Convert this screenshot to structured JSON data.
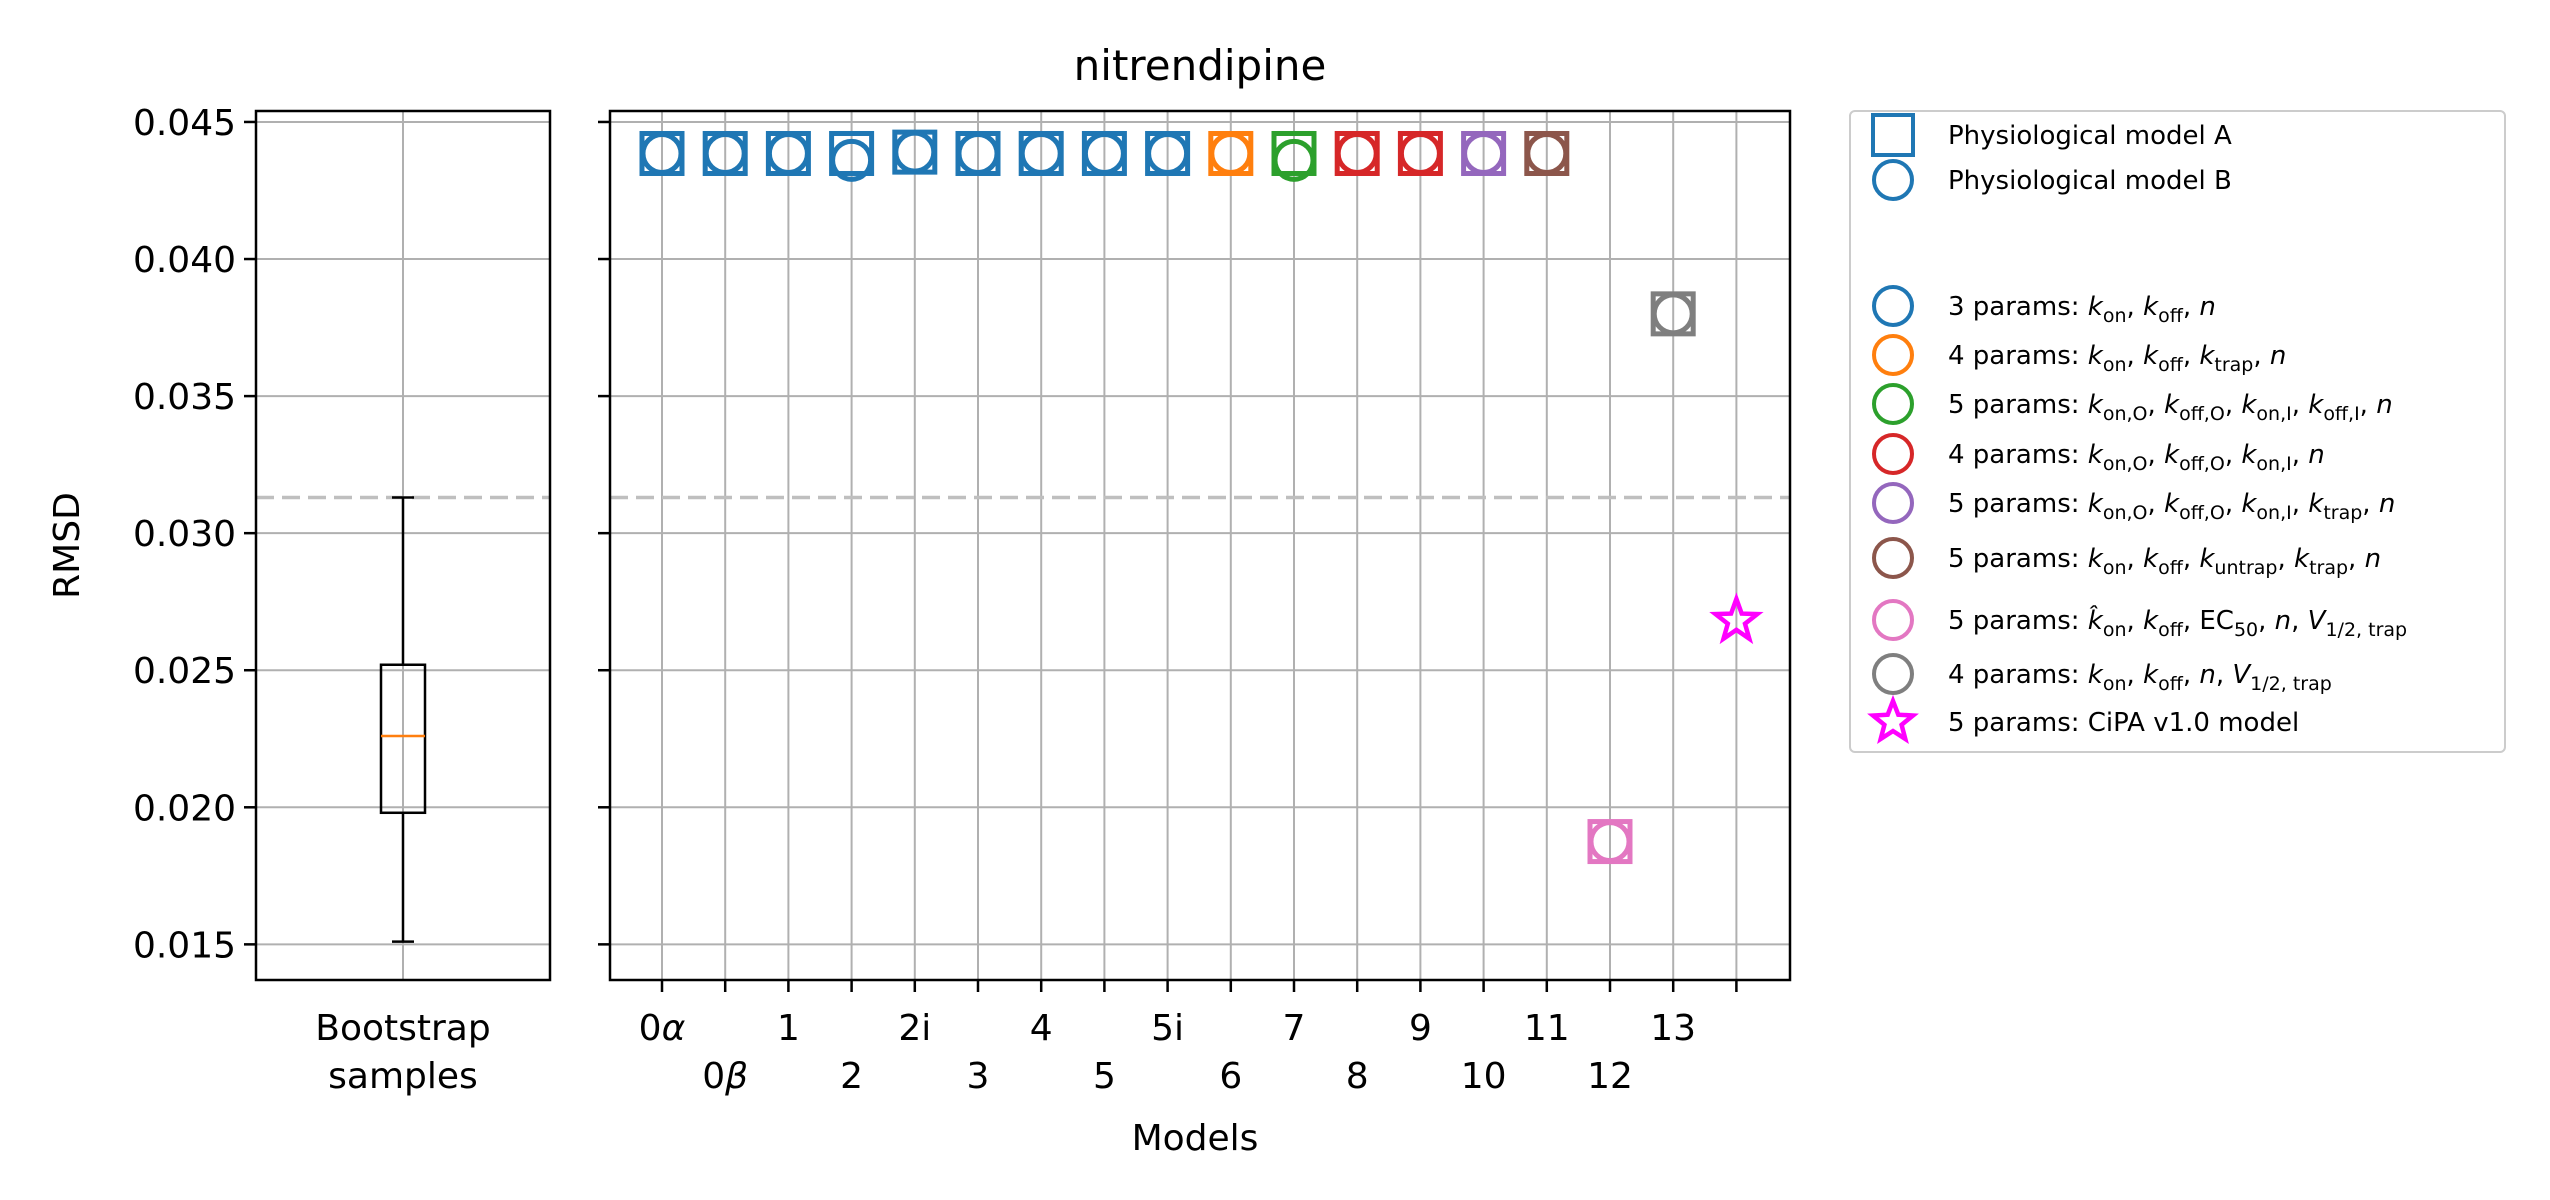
{
  "chart_data": [
    {
      "type": "box",
      "panel": "bootstrap",
      "ylabel": "RMSD",
      "xlabel_lines": [
        "Bootstrap",
        "samples"
      ],
      "ylim": [
        0.0137,
        0.0454
      ],
      "yticks": [
        "0.015",
        "0.020",
        "0.025",
        "0.030",
        "0.035",
        "0.040",
        "0.045"
      ],
      "ytick_values": [
        0.015,
        0.02,
        0.025,
        0.03,
        0.035,
        0.04,
        0.045
      ],
      "grid": true,
      "box": {
        "whisker_low": 0.0151,
        "q1": 0.0198,
        "median": 0.0226,
        "q3": 0.0252,
        "whisker_high": 0.0313
      },
      "reference_line": 0.0313,
      "colors": {
        "box": "#000000",
        "median": "#ff7f0e",
        "reference": "#bfbfbf",
        "grid": "#b0b0b0"
      }
    },
    {
      "type": "scatter",
      "panel": "models",
      "title": "nitrendipine",
      "xlabel": "Models",
      "ylim": [
        0.0137,
        0.0454
      ],
      "grid": true,
      "reference_line": 0.0313,
      "xticks_top": [
        "0α",
        "1",
        "2i",
        "4",
        "5i",
        "7",
        "9",
        "11",
        "13"
      ],
      "xticks_bottom": [
        "0β",
        "2",
        "3",
        "5",
        "6",
        "8",
        "10",
        "12"
      ],
      "x_categories": [
        "0α",
        "0β",
        "1",
        "2",
        "2i",
        "3",
        "4",
        "5",
        "5i",
        "6",
        "7",
        "8",
        "9",
        "10",
        "11",
        "12",
        "13",
        "14"
      ],
      "points": [
        {
          "model": "0α",
          "A": 0.04385,
          "B": 0.04385,
          "color": "#1f77b4"
        },
        {
          "model": "0β",
          "A": 0.04385,
          "B": 0.04385,
          "color": "#1f77b4"
        },
        {
          "model": "1",
          "A": 0.04385,
          "B": 0.04385,
          "color": "#1f77b4"
        },
        {
          "model": "2",
          "A": 0.04385,
          "B": 0.0436,
          "color": "#1f77b4"
        },
        {
          "model": "2i",
          "A": 0.0439,
          "B": 0.0439,
          "color": "#1f77b4"
        },
        {
          "model": "3",
          "A": 0.04385,
          "B": 0.04385,
          "color": "#1f77b4"
        },
        {
          "model": "4",
          "A": 0.04385,
          "B": 0.04385,
          "color": "#1f77b4"
        },
        {
          "model": "5",
          "A": 0.04385,
          "B": 0.04385,
          "color": "#1f77b4"
        },
        {
          "model": "5i",
          "A": 0.04385,
          "B": 0.04385,
          "color": "#1f77b4"
        },
        {
          "model": "6",
          "A": 0.04385,
          "B": 0.04385,
          "color": "#ff7f0e"
        },
        {
          "model": "7",
          "A": 0.04385,
          "B": 0.0436,
          "color": "#2ca02c"
        },
        {
          "model": "8",
          "A": 0.04385,
          "B": 0.04385,
          "color": "#d62728"
        },
        {
          "model": "9",
          "A": 0.04385,
          "B": 0.04385,
          "color": "#d62728"
        },
        {
          "model": "10",
          "A": 0.04385,
          "B": 0.04385,
          "color": "#9467bd"
        },
        {
          "model": "11",
          "A": 0.04385,
          "B": 0.04385,
          "color": "#8c564b"
        },
        {
          "model": "12",
          "A": 0.01875,
          "B": 0.01875,
          "color": "#e377c2"
        },
        {
          "model": "13",
          "A": 0.038,
          "B": 0.038,
          "color": "#7f7f7f"
        }
      ],
      "cipa_point": {
        "model": "14",
        "value": 0.0268,
        "color": "#ff00ff"
      },
      "legend": {
        "placement": "outside-right",
        "entries": [
          {
            "marker": "square",
            "color": "#1f77b4",
            "label": "Physiological model A"
          },
          {
            "marker": "circle",
            "color": "#1f77b4",
            "label": "Physiological model B"
          },
          {
            "marker": "none",
            "label": ""
          },
          {
            "marker": "circle",
            "color": "#1f77b4",
            "prefix": "3 params: ",
            "terms": [
              [
                "k",
                "on"
              ],
              [
                "k",
                "off"
              ],
              [
                "n",
                ""
              ]
            ]
          },
          {
            "marker": "circle",
            "color": "#ff7f0e",
            "prefix": "4 params: ",
            "terms": [
              [
                "k",
                "on"
              ],
              [
                "k",
                "off"
              ],
              [
                "k",
                "trap"
              ],
              [
                "n",
                ""
              ]
            ]
          },
          {
            "marker": "circle",
            "color": "#2ca02c",
            "prefix": "5 params: ",
            "terms": [
              [
                "k",
                "on,O"
              ],
              [
                "k",
                "off,O"
              ],
              [
                "k",
                "on,I"
              ],
              [
                "k",
                "off,I"
              ],
              [
                "n",
                ""
              ]
            ]
          },
          {
            "marker": "circle",
            "color": "#d62728",
            "prefix": "4 params: ",
            "terms": [
              [
                "k",
                "on,O"
              ],
              [
                "k",
                "off,O"
              ],
              [
                "k",
                "on,I"
              ],
              [
                "n",
                ""
              ]
            ]
          },
          {
            "marker": "circle",
            "color": "#9467bd",
            "prefix": "5 params: ",
            "terms": [
              [
                "k",
                "on,O"
              ],
              [
                "k",
                "off,O"
              ],
              [
                "k",
                "on,I"
              ],
              [
                "k",
                "trap"
              ],
              [
                "n",
                ""
              ]
            ]
          },
          {
            "marker": "circle",
            "color": "#8c564b",
            "prefix": "5 params: ",
            "terms": [
              [
                "k",
                "on"
              ],
              [
                "k",
                "off"
              ],
              [
                "k",
                "untrap"
              ],
              [
                "k",
                "trap"
              ],
              [
                "n",
                ""
              ]
            ]
          },
          {
            "marker": "circle",
            "color": "#e377c2",
            "prefix": "5 params: ",
            "terms": [
              [
                "k̂",
                "on"
              ],
              [
                "k",
                "off"
              ],
              [
                "EC",
                "50",
                "roman"
              ],
              [
                "n",
                ""
              ],
              [
                "V",
                "1/2, trap"
              ]
            ]
          },
          {
            "marker": "circle",
            "color": "#7f7f7f",
            "prefix": "4 params: ",
            "terms": [
              [
                "k",
                "on"
              ],
              [
                "k",
                "off"
              ],
              [
                "n",
                ""
              ],
              [
                "V",
                "1/2, trap"
              ]
            ]
          },
          {
            "marker": "star",
            "color": "#ff00ff",
            "label": "5 params: CiPA v1.0 model"
          }
        ]
      }
    }
  ]
}
